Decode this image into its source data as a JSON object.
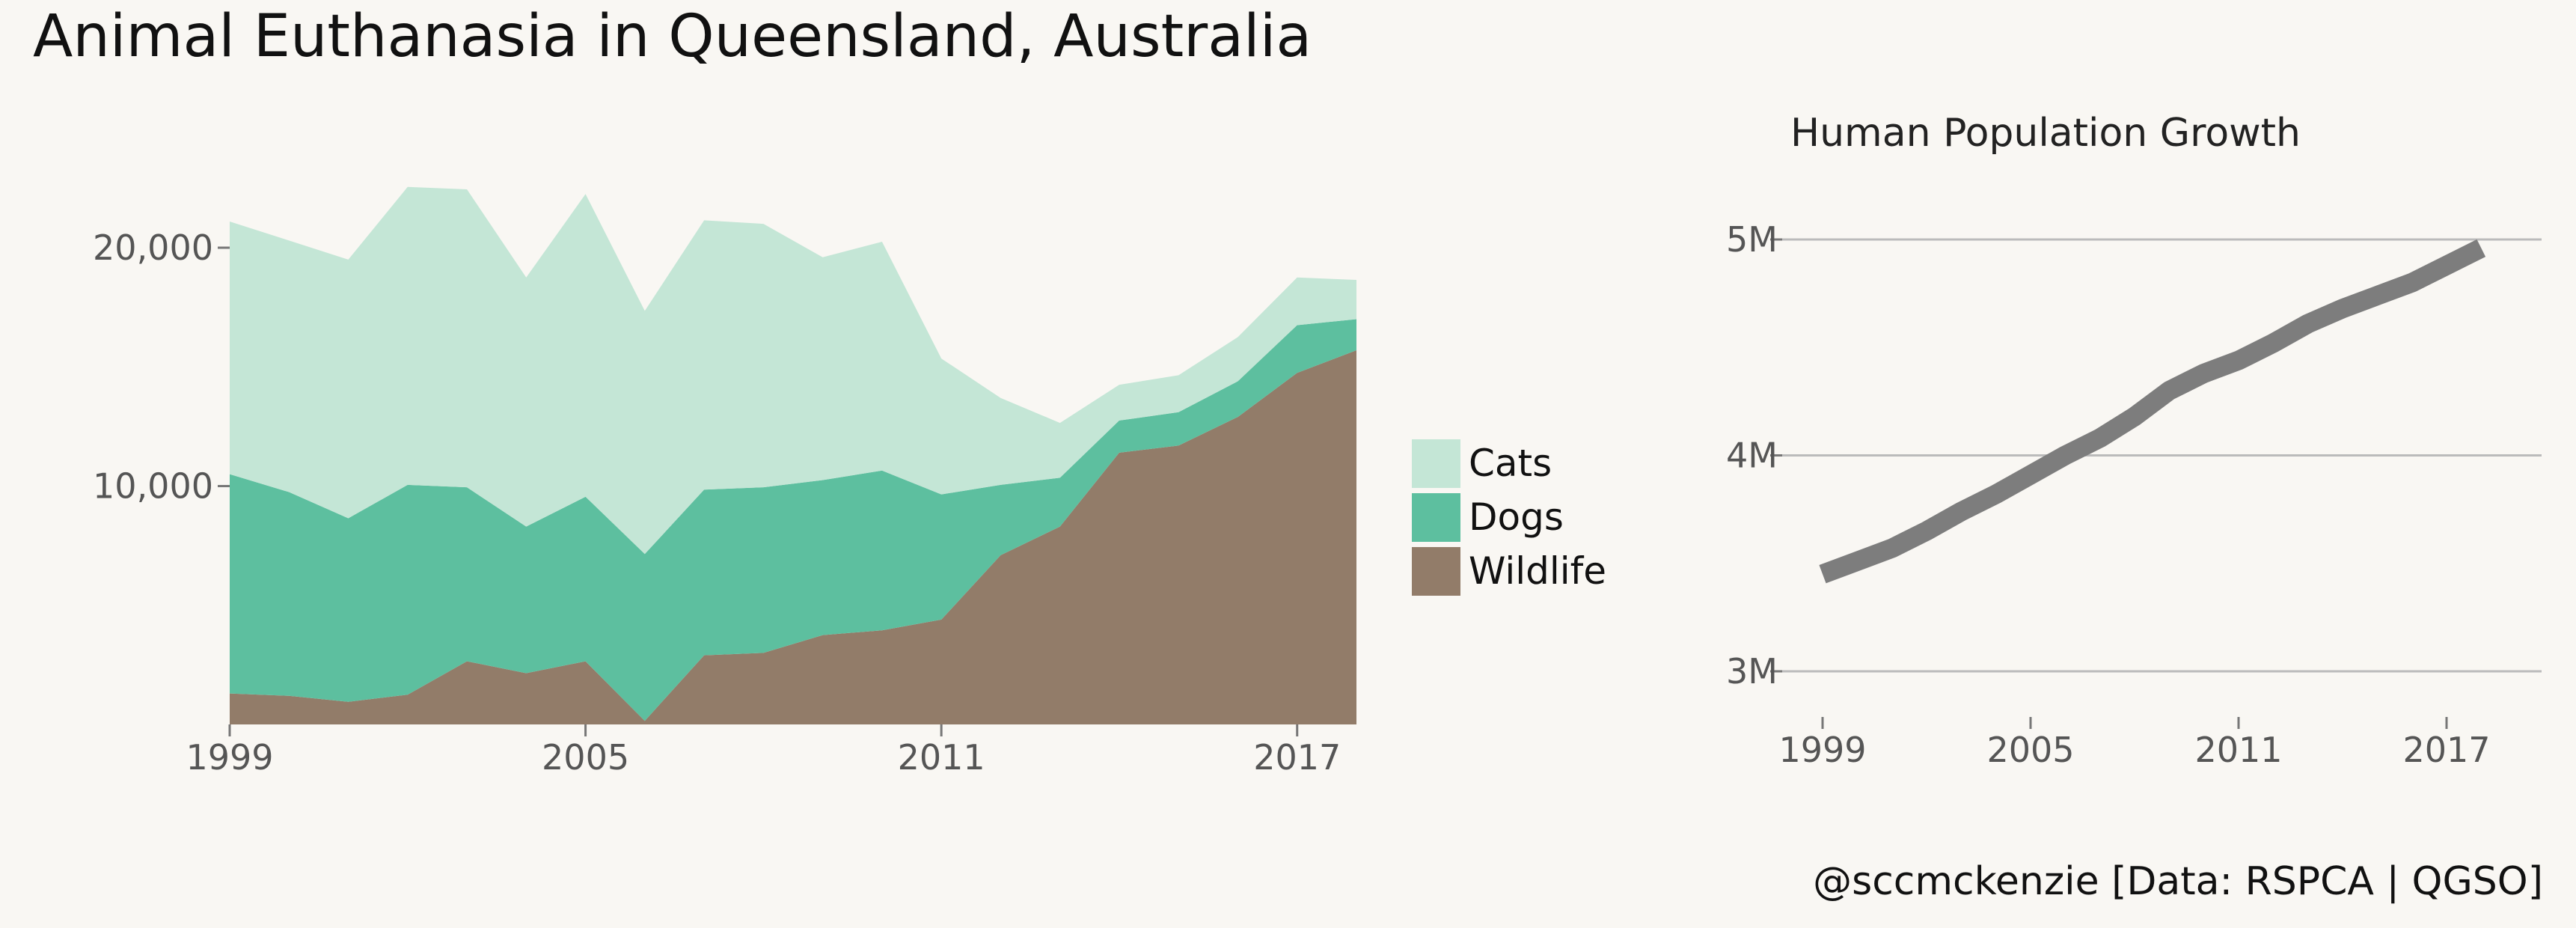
{
  "title": "Animal Euthanasia in Queensland, Australia",
  "caption": "@sccmckenzie [Data: RSPCA | QGSO]",
  "colors": {
    "Cats": "#c4e6d6",
    "Dogs": "#5dbf9f",
    "Wildlife": "#927c69",
    "population_line": "#7d7d7d",
    "gridline": "#bbbbbb",
    "background": "#f9f7f3"
  },
  "chart_data": [
    {
      "type": "area",
      "stacked": true,
      "title": "",
      "xlabel": "",
      "ylabel": "",
      "x": [
        1999,
        2000,
        2001,
        2002,
        2003,
        2004,
        2005,
        2006,
        2007,
        2008,
        2009,
        2010,
        2011,
        2012,
        2013,
        2014,
        2015,
        2016,
        2017,
        2018
      ],
      "series": [
        {
          "name": "Wildlife",
          "values": [
            1300,
            1200,
            950,
            1250,
            2650,
            2150,
            2650,
            150,
            2900,
            3000,
            3750,
            3950,
            4400,
            7100,
            8300,
            11400,
            11700,
            12900,
            14750,
            15700
          ]
        },
        {
          "name": "Dogs",
          "values": [
            9200,
            8550,
            7700,
            8800,
            7300,
            6150,
            6900,
            7000,
            6950,
            6950,
            6500,
            6700,
            5250,
            2950,
            2050,
            1350,
            1400,
            1500,
            2000,
            1300
          ]
        },
        {
          "name": "Cats",
          "values": [
            10600,
            10550,
            10850,
            12500,
            12500,
            10450,
            12700,
            10200,
            11300,
            11050,
            9350,
            9600,
            5700,
            3650,
            2300,
            1500,
            1550,
            1850,
            2000,
            1650
          ]
        }
      ],
      "x_ticks": [
        "1999",
        "2005",
        "2011",
        "2017"
      ],
      "y_ticks": [
        "10,000",
        "20,000"
      ],
      "y_tick_values": [
        10000,
        20000
      ],
      "xlim": [
        1999,
        2018
      ],
      "ylim": [
        0,
        23000
      ],
      "grid": false,
      "legend": {
        "position": "right",
        "entries": [
          "Cats",
          "Dogs",
          "Wildlife"
        ]
      }
    },
    {
      "type": "line",
      "title": "Human Population Growth",
      "xlabel": "",
      "ylabel": "",
      "x": [
        1999,
        2000,
        2001,
        2002,
        2003,
        2004,
        2005,
        2006,
        2007,
        2008,
        2009,
        2010,
        2011,
        2012,
        2013,
        2014,
        2015,
        2016,
        2017,
        2018
      ],
      "series": [
        {
          "values": [
            3.45,
            3.51,
            3.57,
            3.65,
            3.74,
            3.82,
            3.91,
            4.0,
            4.08,
            4.18,
            4.3,
            4.38,
            4.44,
            4.52,
            4.61,
            4.68,
            4.74,
            4.8,
            4.88,
            4.96
          ]
        }
      ],
      "x_ticks": [
        "1999",
        "2005",
        "2011",
        "2017"
      ],
      "y_ticks": [
        "3M",
        "4M",
        "5M"
      ],
      "y_tick_values": [
        3,
        4,
        5
      ],
      "xlim": [
        1999,
        2018.8
      ],
      "ylim": [
        2.75,
        5.2
      ],
      "grid": true,
      "legend": null
    }
  ]
}
